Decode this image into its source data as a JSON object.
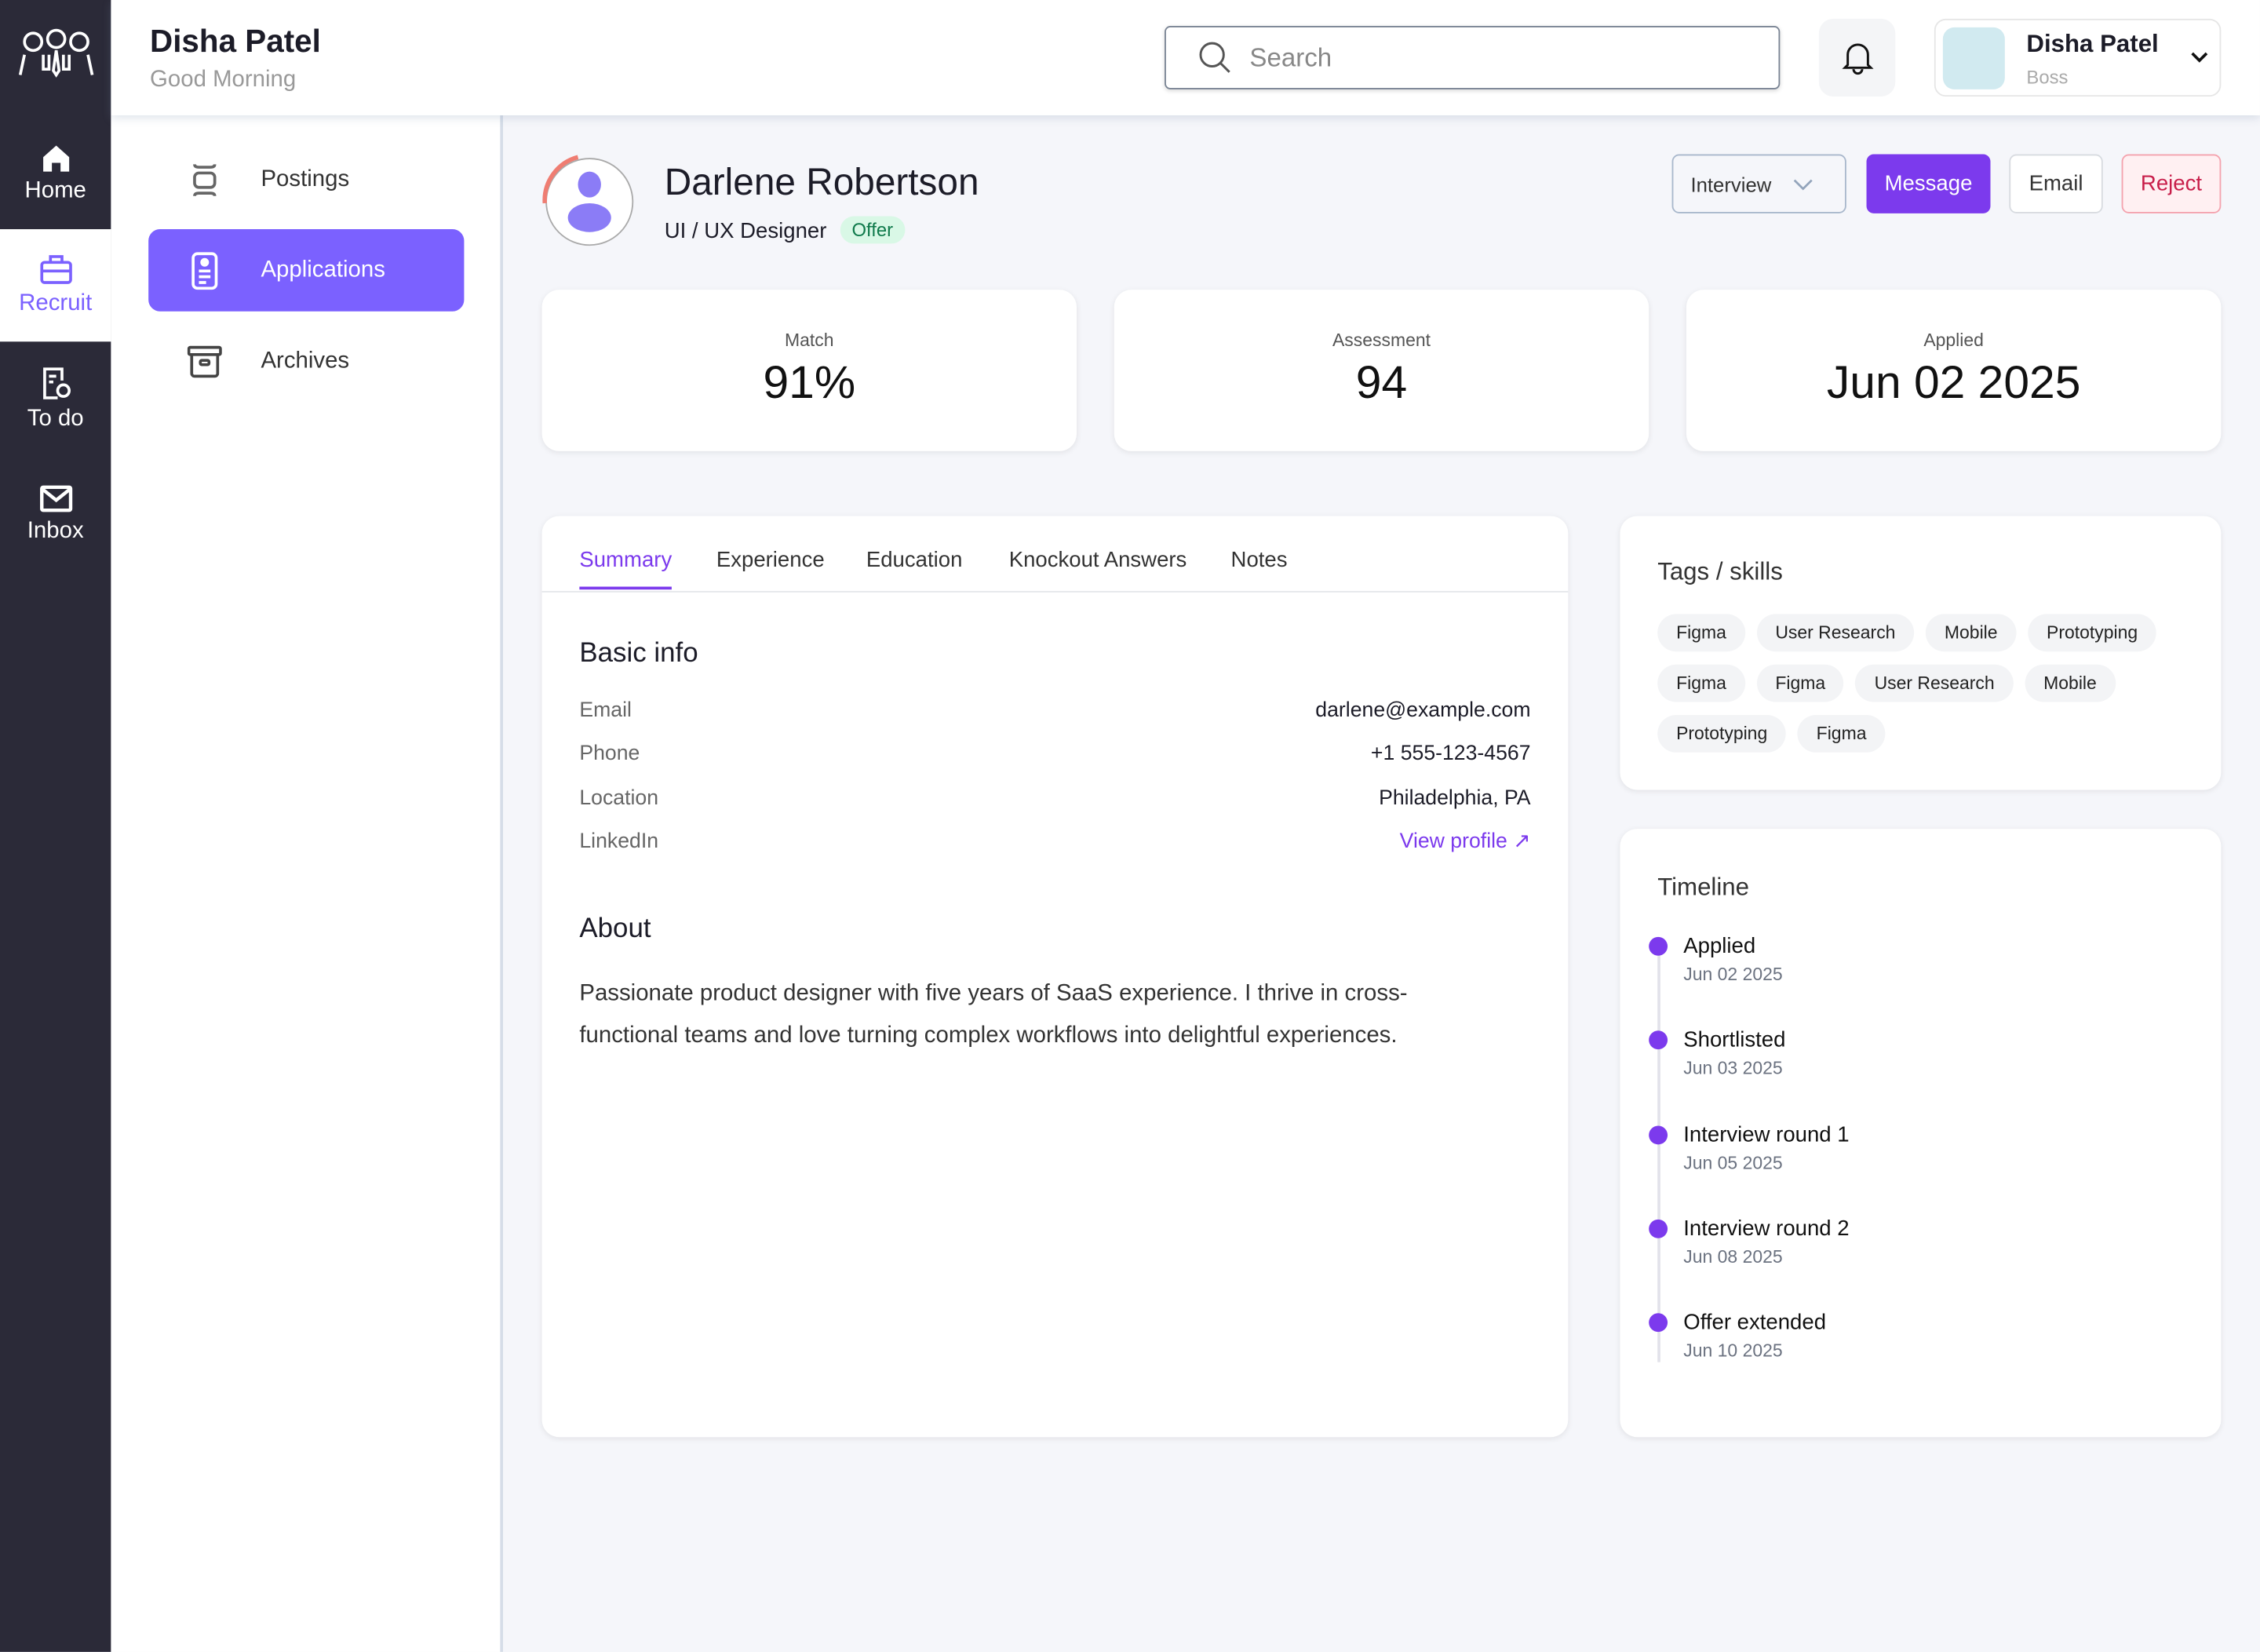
{
  "header": {
    "user_name": "Disha Patel",
    "greeting": "Good Morning",
    "search_placeholder": "Search",
    "profile": {
      "name": "Disha Patel",
      "role": "Boss"
    }
  },
  "rail": {
    "items": [
      {
        "label": "Home",
        "icon": "home-icon"
      },
      {
        "label": "Recruit",
        "icon": "briefcase-icon",
        "active": true
      },
      {
        "label": "To do",
        "icon": "todo-icon"
      },
      {
        "label": "Inbox",
        "icon": "mail-icon"
      }
    ]
  },
  "nav": {
    "items": [
      {
        "label": "Postings"
      },
      {
        "label": "Applications",
        "active": true
      },
      {
        "label": "Archives"
      }
    ]
  },
  "candidate": {
    "name": "Darlene Robertson",
    "title": "UI / UX Designer",
    "status": "Offer"
  },
  "actions": {
    "stage": "Interview",
    "message": "Message",
    "email": "Email",
    "reject": "Reject"
  },
  "stats": [
    {
      "label": "Match",
      "value": "91%"
    },
    {
      "label": "Assessment",
      "value": "94"
    },
    {
      "label": "Applied",
      "value": "Jun 02 2025"
    }
  ],
  "tabs": [
    "Summary",
    "Experience",
    "Education",
    "Knockout Answers",
    "Notes"
  ],
  "basic_info": {
    "title": "Basic info",
    "rows": [
      {
        "key": "Email",
        "value": "darlene@example.com"
      },
      {
        "key": "Phone",
        "value": "+1 555-123-4567"
      },
      {
        "key": "Location",
        "value": "Philadelphia, PA"
      },
      {
        "key": "LinkedIn",
        "value": "View profile ↗"
      }
    ]
  },
  "about": {
    "title": "About",
    "text": "Passionate product designer with five years of SaaS experience. I thrive in cross-functional teams and love turning complex workflows into delightful experiences."
  },
  "tags": {
    "title": "Tags / skills",
    "items": [
      "Figma",
      "User Research",
      "Mobile",
      "Prototyping",
      "Figma",
      "Figma",
      "User Research",
      "Mobile",
      "Prototyping",
      "Figma"
    ]
  },
  "timeline": {
    "title": "Timeline",
    "items": [
      {
        "event": "Applied",
        "date": "Jun 02 2025"
      },
      {
        "event": "Shortlisted",
        "date": "Jun 03 2025"
      },
      {
        "event": "Interview round 1",
        "date": "Jun 05 2025"
      },
      {
        "event": "Interview round 2",
        "date": "Jun 08 2025"
      },
      {
        "event": "Offer extended",
        "date": "Jun 10 2025"
      }
    ]
  },
  "colors": {
    "accent": "#7c3aed",
    "nav_active": "#7b61ff",
    "rail": "#2b2a38",
    "offer_bg": "#d9f8e6",
    "reject": "#c81e4a"
  }
}
